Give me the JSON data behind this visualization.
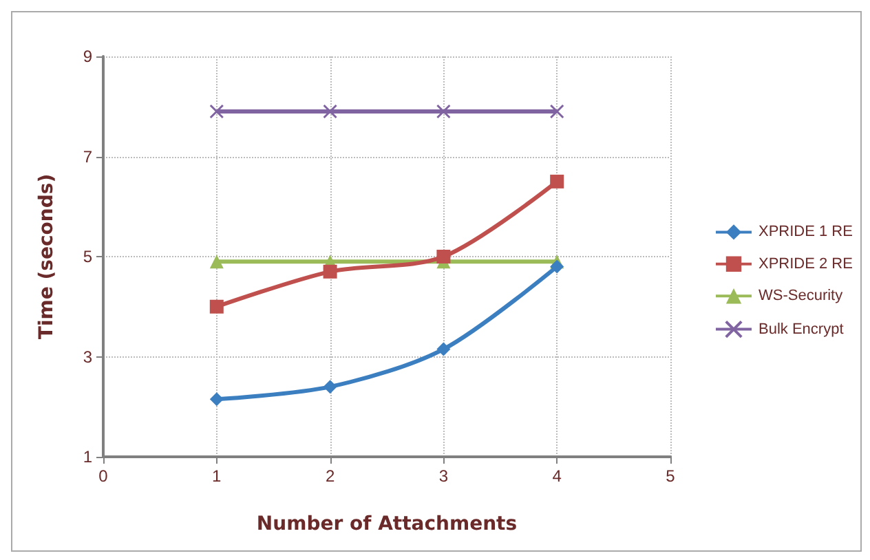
{
  "chart_data": {
    "type": "line",
    "xlabel": "Number of Attachments",
    "ylabel": "Time (seconds)",
    "x": [
      1,
      2,
      3,
      4
    ],
    "xlim": [
      0,
      5
    ],
    "xticks": [
      0,
      1,
      2,
      3,
      4,
      5
    ],
    "ylim": [
      1,
      9
    ],
    "yticks": [
      1,
      3,
      5,
      7,
      9
    ],
    "grid": true,
    "legend": "right",
    "series": [
      {
        "name": "XPRIDE 1 RE",
        "color": "#3c7fc0",
        "marker": "diamond",
        "values": [
          2.15,
          2.4,
          3.15,
          4.8
        ]
      },
      {
        "name": "XPRIDE 2 RE",
        "color": "#c0504d",
        "marker": "square",
        "values": [
          4.0,
          4.7,
          5.0,
          6.5
        ]
      },
      {
        "name": "WS-Security",
        "color": "#9bbb59",
        "marker": "triangle",
        "values": [
          4.9,
          4.9,
          4.9,
          4.9
        ]
      },
      {
        "name": "Bulk Encrypt",
        "color": "#8064a2",
        "marker": "cross",
        "values": [
          7.9,
          7.9,
          7.9,
          7.9
        ]
      }
    ]
  }
}
